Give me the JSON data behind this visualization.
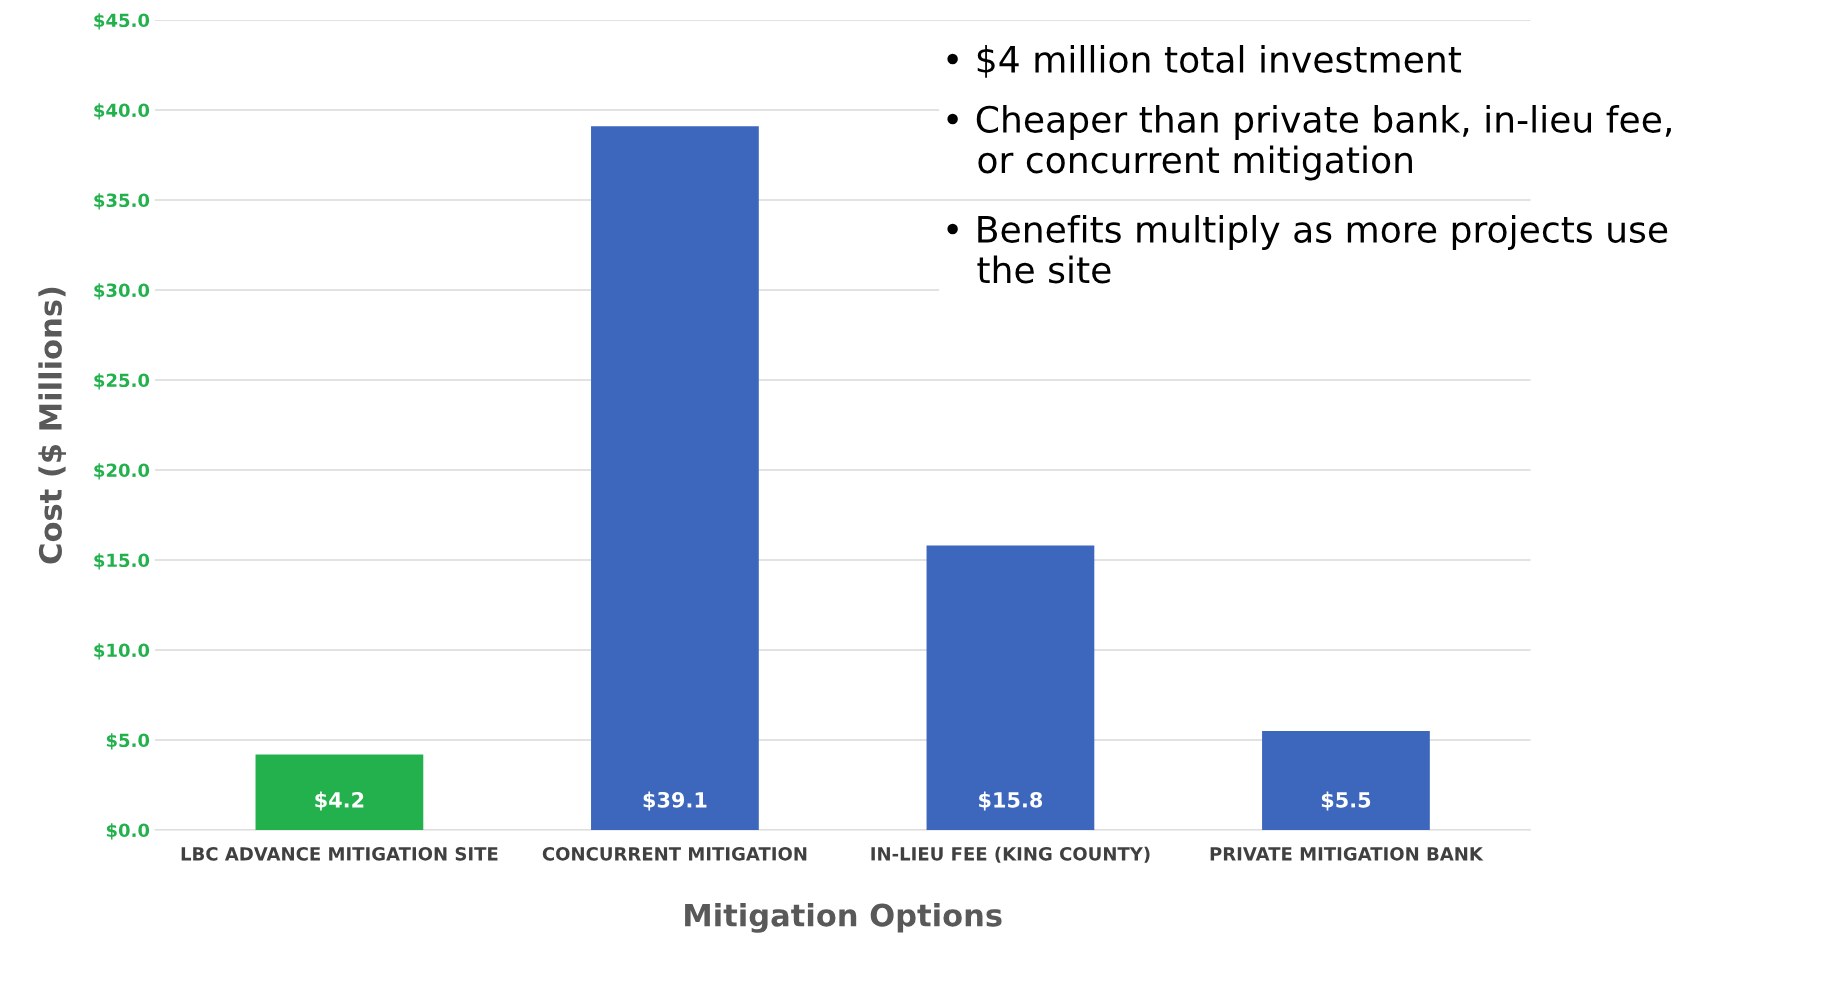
{
  "chart_data": {
    "type": "bar",
    "xlabel": "Mitigation Options",
    "ylabel": "Cost ($ Millions)",
    "categories": [
      "LBC ADVANCE MITIGATION SITE",
      "CONCURRENT MITIGATION",
      "IN-LIEU FEE (KING COUNTY)",
      "PRIVATE MITIGATION BANK"
    ],
    "values": [
      4.2,
      39.1,
      15.8,
      5.5
    ],
    "colors": [
      "#22b14c",
      "#3d66bd",
      "#3d66bd",
      "#3d66bd"
    ],
    "value_labels": [
      "$4.2",
      "$39.1",
      "$15.8",
      "$5.5"
    ],
    "ylim": [
      0,
      45
    ],
    "yticks": [
      {
        "value": 0,
        "label": "$0.0"
      },
      {
        "value": 5,
        "label": "$5.0"
      },
      {
        "value": 10,
        "label": "$10.0"
      },
      {
        "value": 15,
        "label": "$15.0"
      },
      {
        "value": 20,
        "label": "$20.0"
      },
      {
        "value": 25,
        "label": "$25.0"
      },
      {
        "value": 30,
        "label": "$30.0"
      },
      {
        "value": 35,
        "label": "$35.0"
      },
      {
        "value": 40,
        "label": "$40.0"
      },
      {
        "value": 45,
        "label": "$45.0"
      }
    ],
    "grid": "y",
    "annotations": [
      "• $4 million total investment",
      "• Cheaper than private bank, in-lieu fee,\n   or concurrent mitigation",
      "• Benefits multiply as more projects use\n   the site"
    ]
  }
}
